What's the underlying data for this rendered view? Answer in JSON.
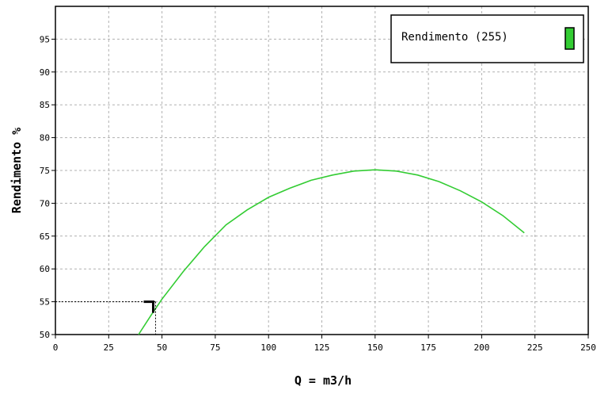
{
  "chart_data": {
    "type": "line",
    "title": "",
    "xlabel": "Q = m3/h",
    "ylabel": "Rendimento %",
    "xlim": [
      0,
      250
    ],
    "ylim": [
      50,
      100
    ],
    "x_ticks": [
      "0",
      "25",
      "50",
      "75",
      "100",
      "125",
      "150",
      "175",
      "200",
      "225",
      "250"
    ],
    "y_ticks": [
      "50",
      "55",
      "60",
      "65",
      "70",
      "75",
      "80",
      "85",
      "90",
      "95"
    ],
    "grid": true,
    "legend_position": "top-right",
    "colors": {
      "series": "#33cc33",
      "marker": "#000000",
      "grid": "#b0b0b0"
    },
    "series": [
      {
        "name": "Rendimento (255)",
        "x": [
          39,
          45,
          50,
          60,
          70,
          80,
          90,
          100,
          110,
          120,
          130,
          140,
          150,
          160,
          170,
          180,
          190,
          200,
          210,
          220
        ],
        "y": [
          50.0,
          53.0,
          55.4,
          59.6,
          63.4,
          66.7,
          69.0,
          70.9,
          72.3,
          73.5,
          74.3,
          74.9,
          75.1,
          74.9,
          74.3,
          73.3,
          71.9,
          70.2,
          68.1,
          65.5
        ]
      }
    ],
    "operating_point": {
      "x": 47,
      "y": 55
    }
  }
}
